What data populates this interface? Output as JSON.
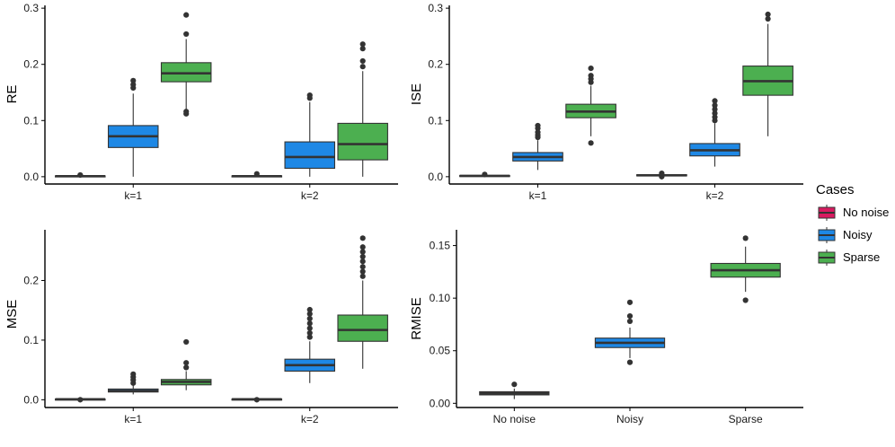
{
  "chart_data": [
    {
      "type": "boxplot",
      "panel": "top-left",
      "ylabel": "RE",
      "categories": [
        "k=1",
        "k=2"
      ],
      "ylim": [
        -0.013,
        0.305
      ],
      "yticks": [
        0.0,
        0.1,
        0.2,
        0.3
      ],
      "ytick_labels": [
        "0.0",
        "0.1",
        "0.2",
        "0.3"
      ],
      "series": [
        {
          "name": "No noise",
          "boxes": [
            {
              "category": "k=1",
              "whisker_low": 0.0,
              "q1": 0.0005,
              "median": 0.001,
              "q3": 0.0015,
              "whisker_high": 0.002,
              "outliers": [
                0.003
              ]
            },
            {
              "category": "k=2",
              "whisker_low": 0.0,
              "q1": 0.0005,
              "median": 0.001,
              "q3": 0.0015,
              "whisker_high": 0.003,
              "outliers": [
                0.005
              ]
            }
          ]
        },
        {
          "name": "Noisy",
          "boxes": [
            {
              "category": "k=1",
              "whisker_low": 0.0,
              "q1": 0.052,
              "median": 0.072,
              "q3": 0.091,
              "whisker_high": 0.148,
              "outliers": [
                0.158,
                0.164,
                0.171
              ]
            },
            {
              "category": "k=2",
              "whisker_low": 0.0,
              "q1": 0.015,
              "median": 0.035,
              "q3": 0.062,
              "whisker_high": 0.133,
              "outliers": [
                0.14,
                0.145
              ]
            }
          ]
        },
        {
          "name": "Sparse",
          "boxes": [
            {
              "category": "k=1",
              "whisker_low": 0.118,
              "q1": 0.169,
              "median": 0.184,
              "q3": 0.203,
              "whisker_high": 0.245,
              "outliers": [
                0.112,
                0.116,
                0.254,
                0.288
              ]
            },
            {
              "category": "k=2",
              "whisker_low": 0.0,
              "q1": 0.03,
              "median": 0.058,
              "q3": 0.095,
              "whisker_high": 0.188,
              "outliers": [
                0.196,
                0.206,
                0.228,
                0.236
              ]
            }
          ]
        }
      ]
    },
    {
      "type": "boxplot",
      "panel": "top-right",
      "ylabel": "ISE",
      "categories": [
        "k=1",
        "k=2"
      ],
      "ylim": [
        -0.013,
        0.305
      ],
      "yticks": [
        0.0,
        0.1,
        0.2,
        0.3
      ],
      "ytick_labels": [
        "0.0",
        "0.1",
        "0.2",
        "0.3"
      ],
      "series": [
        {
          "name": "No noise",
          "boxes": [
            {
              "category": "k=1",
              "whisker_low": 0.0,
              "q1": 0.0008,
              "median": 0.0015,
              "q3": 0.0022,
              "whisker_high": 0.003,
              "outliers": [
                0.004
              ]
            },
            {
              "category": "k=2",
              "whisker_low": 0.0,
              "q1": 0.0015,
              "median": 0.0025,
              "q3": 0.0035,
              "whisker_high": 0.005,
              "outliers": [
                0.0,
                0.006
              ]
            }
          ]
        },
        {
          "name": "Noisy",
          "boxes": [
            {
              "category": "k=1",
              "whisker_low": 0.012,
              "q1": 0.028,
              "median": 0.035,
              "q3": 0.043,
              "whisker_high": 0.065,
              "outliers": [
                0.07,
                0.074,
                0.079,
                0.086,
                0.091
              ]
            },
            {
              "category": "k=2",
              "whisker_low": 0.018,
              "q1": 0.037,
              "median": 0.047,
              "q3": 0.059,
              "whisker_high": 0.095,
              "outliers": [
                0.1,
                0.106,
                0.113,
                0.12,
                0.127,
                0.135
              ]
            }
          ]
        },
        {
          "name": "Sparse",
          "boxes": [
            {
              "category": "k=1",
              "whisker_low": 0.072,
              "q1": 0.105,
              "median": 0.116,
              "q3": 0.129,
              "whisker_high": 0.162,
              "outliers": [
                0.06,
                0.168,
                0.174,
                0.18,
                0.193
              ]
            },
            {
              "category": "k=2",
              "whisker_low": 0.072,
              "q1": 0.145,
              "median": 0.17,
              "q3": 0.197,
              "whisker_high": 0.272,
              "outliers": [
                0.281,
                0.289
              ]
            }
          ]
        }
      ]
    },
    {
      "type": "boxplot",
      "panel": "bottom-left",
      "ylabel": "MSE",
      "categories": [
        "k=1",
        "k=2"
      ],
      "ylim": [
        -0.013,
        0.285
      ],
      "yticks": [
        0.0,
        0.1,
        0.2
      ],
      "ytick_labels": [
        "0.0",
        "0.1",
        "0.2"
      ],
      "series": [
        {
          "name": "No noise",
          "boxes": [
            {
              "category": "k=1",
              "whisker_low": 0.0,
              "q1": 0.0004,
              "median": 0.0008,
              "q3": 0.0012,
              "whisker_high": 0.002,
              "outliers": [
                0.0
              ]
            },
            {
              "category": "k=2",
              "whisker_low": 0.0,
              "q1": 0.0004,
              "median": 0.0008,
              "q3": 0.0012,
              "whisker_high": 0.002,
              "outliers": [
                0.0
              ]
            }
          ]
        },
        {
          "name": "Noisy",
          "boxes": [
            {
              "category": "k=1",
              "whisker_low": 0.009,
              "q1": 0.013,
              "median": 0.015,
              "q3": 0.018,
              "whisker_high": 0.024,
              "outliers": [
                0.028,
                0.033,
                0.038,
                0.043
              ]
            },
            {
              "category": "k=2",
              "whisker_low": 0.028,
              "q1": 0.048,
              "median": 0.058,
              "q3": 0.068,
              "whisker_high": 0.098,
              "outliers": [
                0.105,
                0.112,
                0.12,
                0.128,
                0.136,
                0.144,
                0.151
              ]
            }
          ]
        },
        {
          "name": "Sparse",
          "boxes": [
            {
              "category": "k=1",
              "whisker_low": 0.016,
              "q1": 0.025,
              "median": 0.03,
              "q3": 0.034,
              "whisker_high": 0.048,
              "outliers": [
                0.054,
                0.062,
                0.097
              ]
            },
            {
              "category": "k=2",
              "whisker_low": 0.052,
              "q1": 0.098,
              "median": 0.117,
              "q3": 0.142,
              "whisker_high": 0.2,
              "outliers": [
                0.207,
                0.215,
                0.223,
                0.232,
                0.24,
                0.248,
                0.256,
                0.271
              ]
            }
          ]
        }
      ]
    },
    {
      "type": "boxplot",
      "panel": "bottom-right",
      "ylabel": "RMISE",
      "categories": [
        "No noise",
        "Noisy",
        "Sparse"
      ],
      "ylim": [
        -0.004,
        0.165
      ],
      "yticks": [
        0.0,
        0.05,
        0.1,
        0.15
      ],
      "ytick_labels": [
        "0.00",
        "0.05",
        "0.10",
        "0.15"
      ],
      "series": [
        {
          "name": "No noise",
          "boxes": [
            {
              "category": "No noise",
              "whisker_low": 0.004,
              "q1": 0.008,
              "median": 0.0095,
              "q3": 0.011,
              "whisker_high": 0.014,
              "outliers": [
                0.018
              ]
            }
          ]
        },
        {
          "name": "Noisy",
          "boxes": [
            {
              "category": "Noisy",
              "whisker_low": 0.043,
              "q1": 0.053,
              "median": 0.0575,
              "q3": 0.062,
              "whisker_high": 0.072,
              "outliers": [
                0.039,
                0.078,
                0.083,
                0.096
              ]
            }
          ]
        },
        {
          "name": "Sparse",
          "boxes": [
            {
              "category": "Sparse",
              "whisker_low": 0.106,
              "q1": 0.12,
              "median": 0.1265,
              "q3": 0.133,
              "whisker_high": 0.149,
              "outliers": [
                0.098,
                0.157
              ]
            }
          ]
        }
      ]
    }
  ],
  "legend": {
    "title": "Cases",
    "items": [
      {
        "label": "No noise",
        "color": "#d81b60"
      },
      {
        "label": "Noisy",
        "color": "#1e88e5"
      },
      {
        "label": "Sparse",
        "color": "#4caf50"
      }
    ]
  },
  "colors": {
    "No noise": "#d81b60",
    "Noisy": "#1e88e5",
    "Sparse": "#4caf50",
    "box_stroke": "#333333",
    "axis": "#000000"
  }
}
